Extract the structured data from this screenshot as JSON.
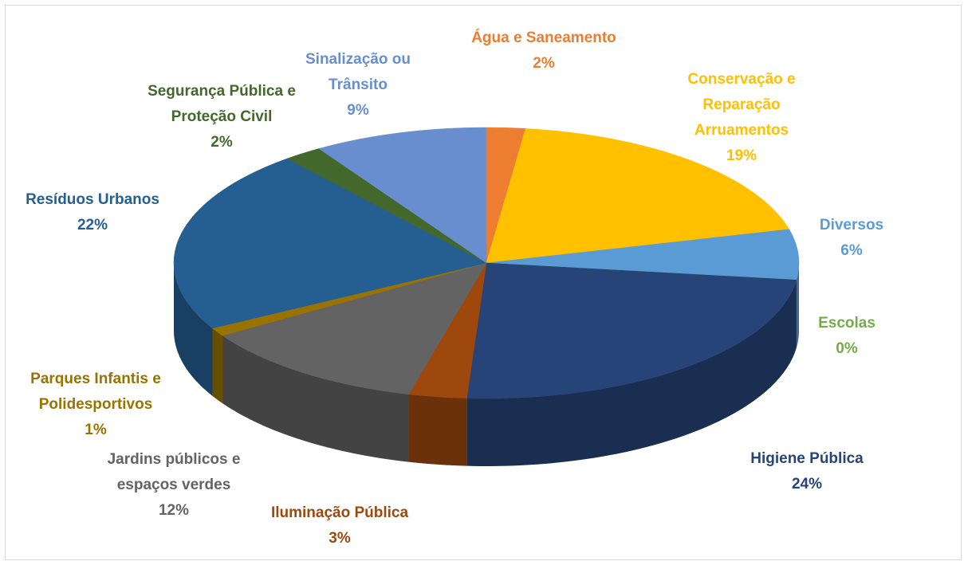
{
  "chart_data": {
    "type": "pie3d",
    "categories": [
      "Água e Saneamento",
      "Conservação e Reparação Arruamentos",
      "Diversos",
      "Escolas",
      "Higiene Pública",
      "Iluminação Pública",
      "Jardins públicos e espaços verdes",
      "Parques Infantis e Polidesportivos",
      "Resíduos Urbanos",
      "Segurança Pública e Proteção Civil",
      "Sinalização ou Trânsito"
    ],
    "values": [
      2,
      19,
      6,
      0,
      24,
      3,
      12,
      1,
      22,
      2,
      9
    ],
    "value_labels": [
      "2%",
      "19%",
      "6%",
      "0%",
      "24%",
      "3%",
      "12%",
      "1%",
      "22%",
      "2%",
      "9%"
    ],
    "colors": [
      "#ed7d31",
      "#ffc000",
      "#5b9bd5",
      "#70ad47",
      "#264478",
      "#9e480e",
      "#636363",
      "#997300",
      "#255e91",
      "#43682b",
      "#698ed0"
    ]
  }
}
